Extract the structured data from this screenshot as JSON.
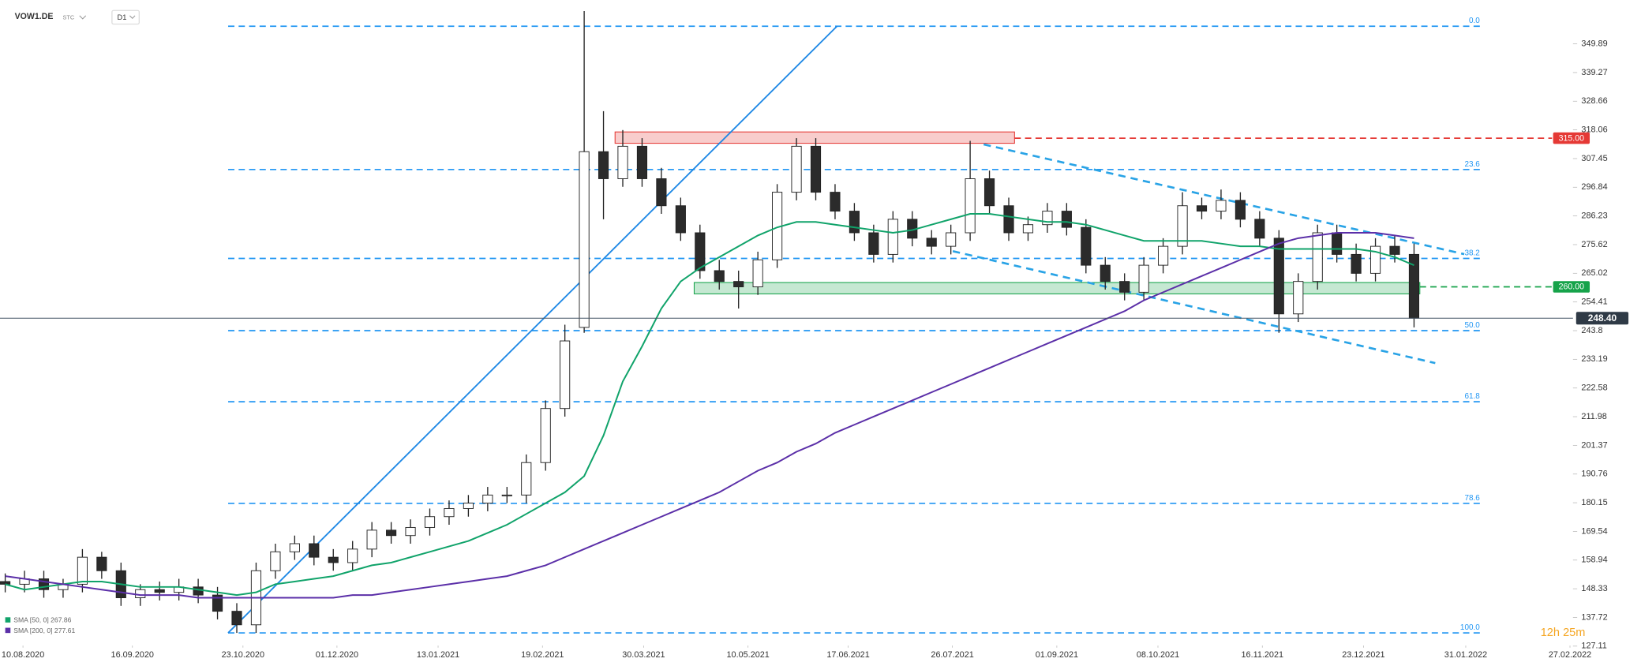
{
  "symbol": "VOW1.DE",
  "market": "STC",
  "interval": "D1",
  "countdown": "12h 25m",
  "chart_data": {
    "type": "candlestick",
    "up_color": "#ffffff",
    "down_color": "#2b2b2b",
    "wick_color": "#222222",
    "xlim": [
      -0.27,
      81.1
    ],
    "xticks": [
      {
        "value": 0.92,
        "label": "10.08.2020"
      },
      {
        "value": 6.59,
        "label": "16.09.2020"
      },
      {
        "value": 12.32,
        "label": "23.10.2020"
      },
      {
        "value": 17.19,
        "label": "01.12.2020"
      },
      {
        "value": 22.43,
        "label": "13.01.2021"
      },
      {
        "value": 27.84,
        "label": "19.02.2021"
      },
      {
        "value": 33.08,
        "label": "30.03.2021"
      },
      {
        "value": 38.49,
        "label": "10.05.2021"
      },
      {
        "value": 43.68,
        "label": "17.06.2021"
      },
      {
        "value": 49.08,
        "label": "26.07.2021"
      },
      {
        "value": 54.49,
        "label": "01.09.2021"
      },
      {
        "value": 59.73,
        "label": "08.10.2021"
      },
      {
        "value": 65.14,
        "label": "16.11.2021"
      },
      {
        "value": 70.38,
        "label": "23.12.2021"
      },
      {
        "value": 75.68,
        "label": "31.01.2022"
      },
      {
        "value": 81.08,
        "label": "27.02.2022"
      }
    ],
    "ylim": [
      122.1,
      366.1
    ],
    "yticks": [
      127.11,
      137.72,
      148.33,
      158.94,
      169.54,
      180.15,
      190.76,
      201.37,
      211.98,
      222.58,
      233.19,
      243.8,
      254.41,
      265.02,
      275.62,
      286.23,
      296.84,
      307.45,
      318.06,
      328.66,
      339.27,
      349.89
    ],
    "open": [
      151,
      150,
      152,
      148,
      150,
      160,
      155,
      145,
      148,
      147,
      149,
      146,
      140,
      135,
      155,
      162,
      165,
      160,
      158,
      163,
      170,
      168,
      171,
      175,
      178,
      180,
      183,
      183,
      195,
      215,
      245,
      310,
      300,
      312,
      300,
      290,
      280,
      266,
      262,
      260,
      270,
      295,
      312,
      295,
      288,
      280,
      272,
      285,
      278,
      275,
      280,
      300,
      290,
      280,
      283,
      288,
      282,
      268,
      262,
      258,
      268,
      275,
      290,
      288,
      292,
      285,
      278,
      250,
      262,
      280,
      272,
      265,
      275,
      272
    ],
    "high": [
      154,
      155,
      155,
      152,
      163,
      162,
      158,
      150,
      151,
      152,
      152,
      149,
      143,
      158,
      165,
      168,
      168,
      163,
      166,
      173,
      173,
      174,
      178,
      181,
      183,
      186,
      186,
      198,
      218,
      246,
      362,
      325,
      318,
      315,
      304,
      293,
      283,
      270,
      266,
      273,
      298,
      315,
      315,
      298,
      291,
      283,
      288,
      288,
      281,
      283,
      314,
      303,
      293,
      286,
      291,
      291,
      285,
      271,
      265,
      271,
      278,
      295,
      293,
      296,
      295,
      288,
      281,
      265,
      283,
      283,
      276,
      278,
      279,
      276
    ],
    "low": [
      147,
      147,
      145,
      145,
      147,
      152,
      142,
      142,
      144,
      144,
      143,
      137,
      132,
      132,
      152,
      159,
      157,
      155,
      155,
      160,
      165,
      165,
      168,
      172,
      175,
      177,
      180,
      180,
      192,
      212,
      243,
      285,
      297,
      297,
      287,
      277,
      263,
      259,
      252,
      257,
      267,
      292,
      292,
      285,
      277,
      269,
      269,
      275,
      272,
      272,
      277,
      287,
      277,
      277,
      280,
      279,
      265,
      259,
      255,
      255,
      265,
      272,
      285,
      285,
      282,
      275,
      243,
      247,
      259,
      269,
      262,
      262,
      269,
      245
    ],
    "close": [
      150,
      152,
      148,
      150,
      160,
      155,
      145,
      148,
      147,
      149,
      146,
      140,
      135,
      155,
      162,
      165,
      160,
      158,
      163,
      170,
      168,
      171,
      175,
      178,
      180,
      183,
      183,
      195,
      215,
      240,
      310,
      300,
      312,
      300,
      290,
      280,
      266,
      262,
      260,
      270,
      295,
      312,
      295,
      288,
      280,
      272,
      285,
      278,
      275,
      280,
      300,
      290,
      280,
      283,
      288,
      282,
      268,
      262,
      258,
      268,
      275,
      290,
      288,
      292,
      285,
      278,
      250,
      262,
      280,
      272,
      265,
      275,
      272,
      248.4
    ],
    "series": [
      {
        "name": "SMA [50, 0] 267.86",
        "color": "#10a36a",
        "values": [
          150,
          148,
          149,
          150,
          151,
          151,
          150,
          149,
          149,
          149,
          148,
          147,
          146,
          147,
          150,
          151,
          152,
          153,
          155,
          157,
          158,
          160,
          162,
          164,
          166,
          169,
          172,
          176,
          180,
          184,
          190,
          205,
          225,
          238,
          252,
          262,
          267,
          271,
          275,
          279,
          282,
          284,
          284,
          283,
          282,
          281,
          280,
          281,
          283,
          285,
          287,
          287,
          286,
          285,
          284,
          284,
          283,
          281,
          279,
          277,
          277,
          277,
          277,
          276,
          275,
          275,
          274,
          274,
          274,
          274,
          274,
          273,
          271,
          268
        ]
      },
      {
        "name": "SMA [200, 0] 277.61",
        "color": "#5b2fa8",
        "values": [
          153,
          152,
          151,
          150,
          149,
          148,
          147,
          146,
          146,
          146,
          145,
          145,
          145,
          145,
          145,
          145,
          145,
          145,
          146,
          146,
          147,
          148,
          149,
          150,
          151,
          152,
          153,
          155,
          157,
          160,
          163,
          166,
          169,
          172,
          175,
          178,
          181,
          184,
          188,
          192,
          195,
          199,
          202,
          206,
          209,
          212,
          215,
          218,
          221,
          224,
          227,
          230,
          233,
          236,
          239,
          242,
          245,
          248,
          251,
          255,
          258,
          261,
          264,
          267,
          270,
          273,
          276,
          278,
          279,
          280,
          280,
          280,
          279,
          278
        ]
      }
    ],
    "fib_color": "#2196f3",
    "fib_levels": [
      {
        "label": "0.0",
        "price": 356.4
      },
      {
        "label": "23.6",
        "price": 303.4
      },
      {
        "label": "38.2",
        "price": 270.5
      },
      {
        "label": "50.0",
        "price": 243.8
      },
      {
        "label": "61.8",
        "price": 217.5
      },
      {
        "label": "78.6",
        "price": 179.9
      },
      {
        "label": "100.0",
        "price": 132.0
      }
    ],
    "zones": [
      {
        "x": [
          31.6,
          52.3
        ],
        "y": [
          313.1,
          317.3
        ],
        "color": "#e53935",
        "level": {
          "value": 315,
          "label": "315.00"
        }
      },
      {
        "x": [
          35.7,
          73.3
        ],
        "y": [
          257.4,
          261.6
        ],
        "color": "#16a34a",
        "level": {
          "value": 260,
          "label": "260.00"
        }
      }
    ],
    "trendlines": [
      {
        "points": [
          [
            11.55,
            132
          ],
          [
            43.1,
            356.4
          ]
        ],
        "color": "#1e88e5",
        "dashed": false
      },
      {
        "points": [
          [
            50.7,
            312.7
          ],
          [
            75.6,
            272.1
          ]
        ],
        "color": "#29a3e6",
        "dashed": true
      },
      {
        "points": [
          [
            49.1,
            273.2
          ],
          [
            74.1,
            231.8
          ]
        ],
        "color": "#29a3e6",
        "dashed": true
      }
    ],
    "last_price": {
      "value": 248.4,
      "label": "248.40"
    }
  }
}
